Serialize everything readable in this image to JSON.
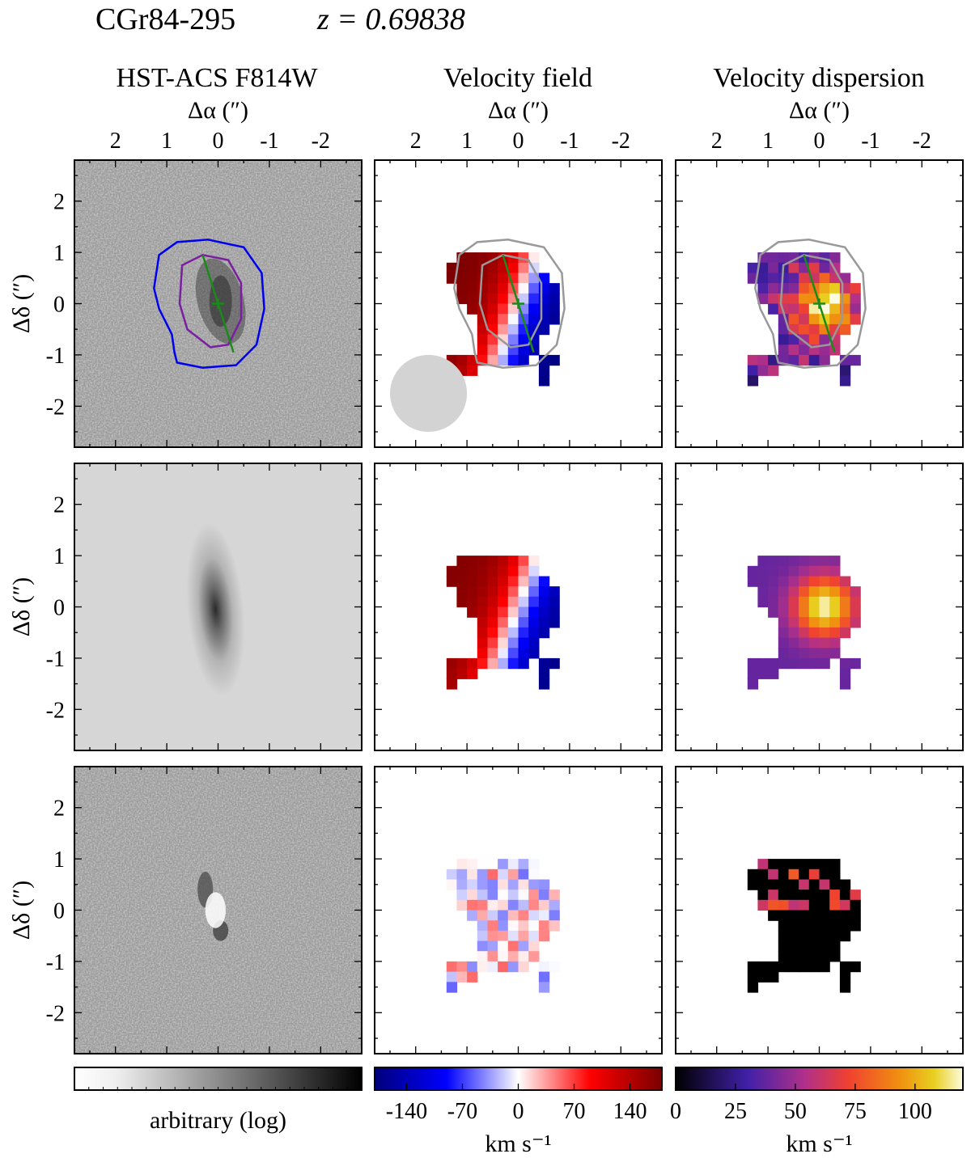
{
  "header": {
    "object_name": "CGr84-295",
    "redshift_label": "z = 0.69838"
  },
  "columns": [
    {
      "title": "HST-ACS F814W"
    },
    {
      "title": "Velocity field"
    },
    {
      "title": "Velocity dispersion"
    }
  ],
  "axes": {
    "x_label": "Δα (″)",
    "y_label": "Δδ (″)",
    "x_ticks": [
      "2",
      "1",
      "0",
      "-1",
      "-2"
    ],
    "y_ticks": [
      "2",
      "1",
      "0",
      "-1",
      "-2"
    ]
  },
  "colorbars": [
    {
      "name": "imaging",
      "label": "arbitrary (log)",
      "ticks": []
    },
    {
      "name": "velocity",
      "label": "km s⁻¹",
      "ticks": [
        "-140",
        "-70",
        "0",
        "70",
        "140"
      ]
    },
    {
      "name": "dispersion",
      "label": "km s⁻¹",
      "ticks": [
        "0",
        "25",
        "50",
        "75",
        "100"
      ]
    }
  ],
  "chart_data": {
    "type": "heatmap",
    "grid": "3 rows x 3 columns of image panels",
    "rows": [
      "observed",
      "model",
      "residual"
    ],
    "x_range_arcsec": [
      2.8,
      -2.8
    ],
    "y_range_arcsec": [
      -2.8,
      2.8
    ],
    "velocity_range_kms": [
      -180,
      180
    ],
    "dispersion_range_kms": [
      0,
      120
    ],
    "colors": {
      "blue_contour": "#0000ee",
      "purple_contour": "#7a1fa2",
      "gray_contour": "#999999",
      "kinematic_axis": "#1a8a1a",
      "psf_disk": "#d3d3d3"
    }
  }
}
